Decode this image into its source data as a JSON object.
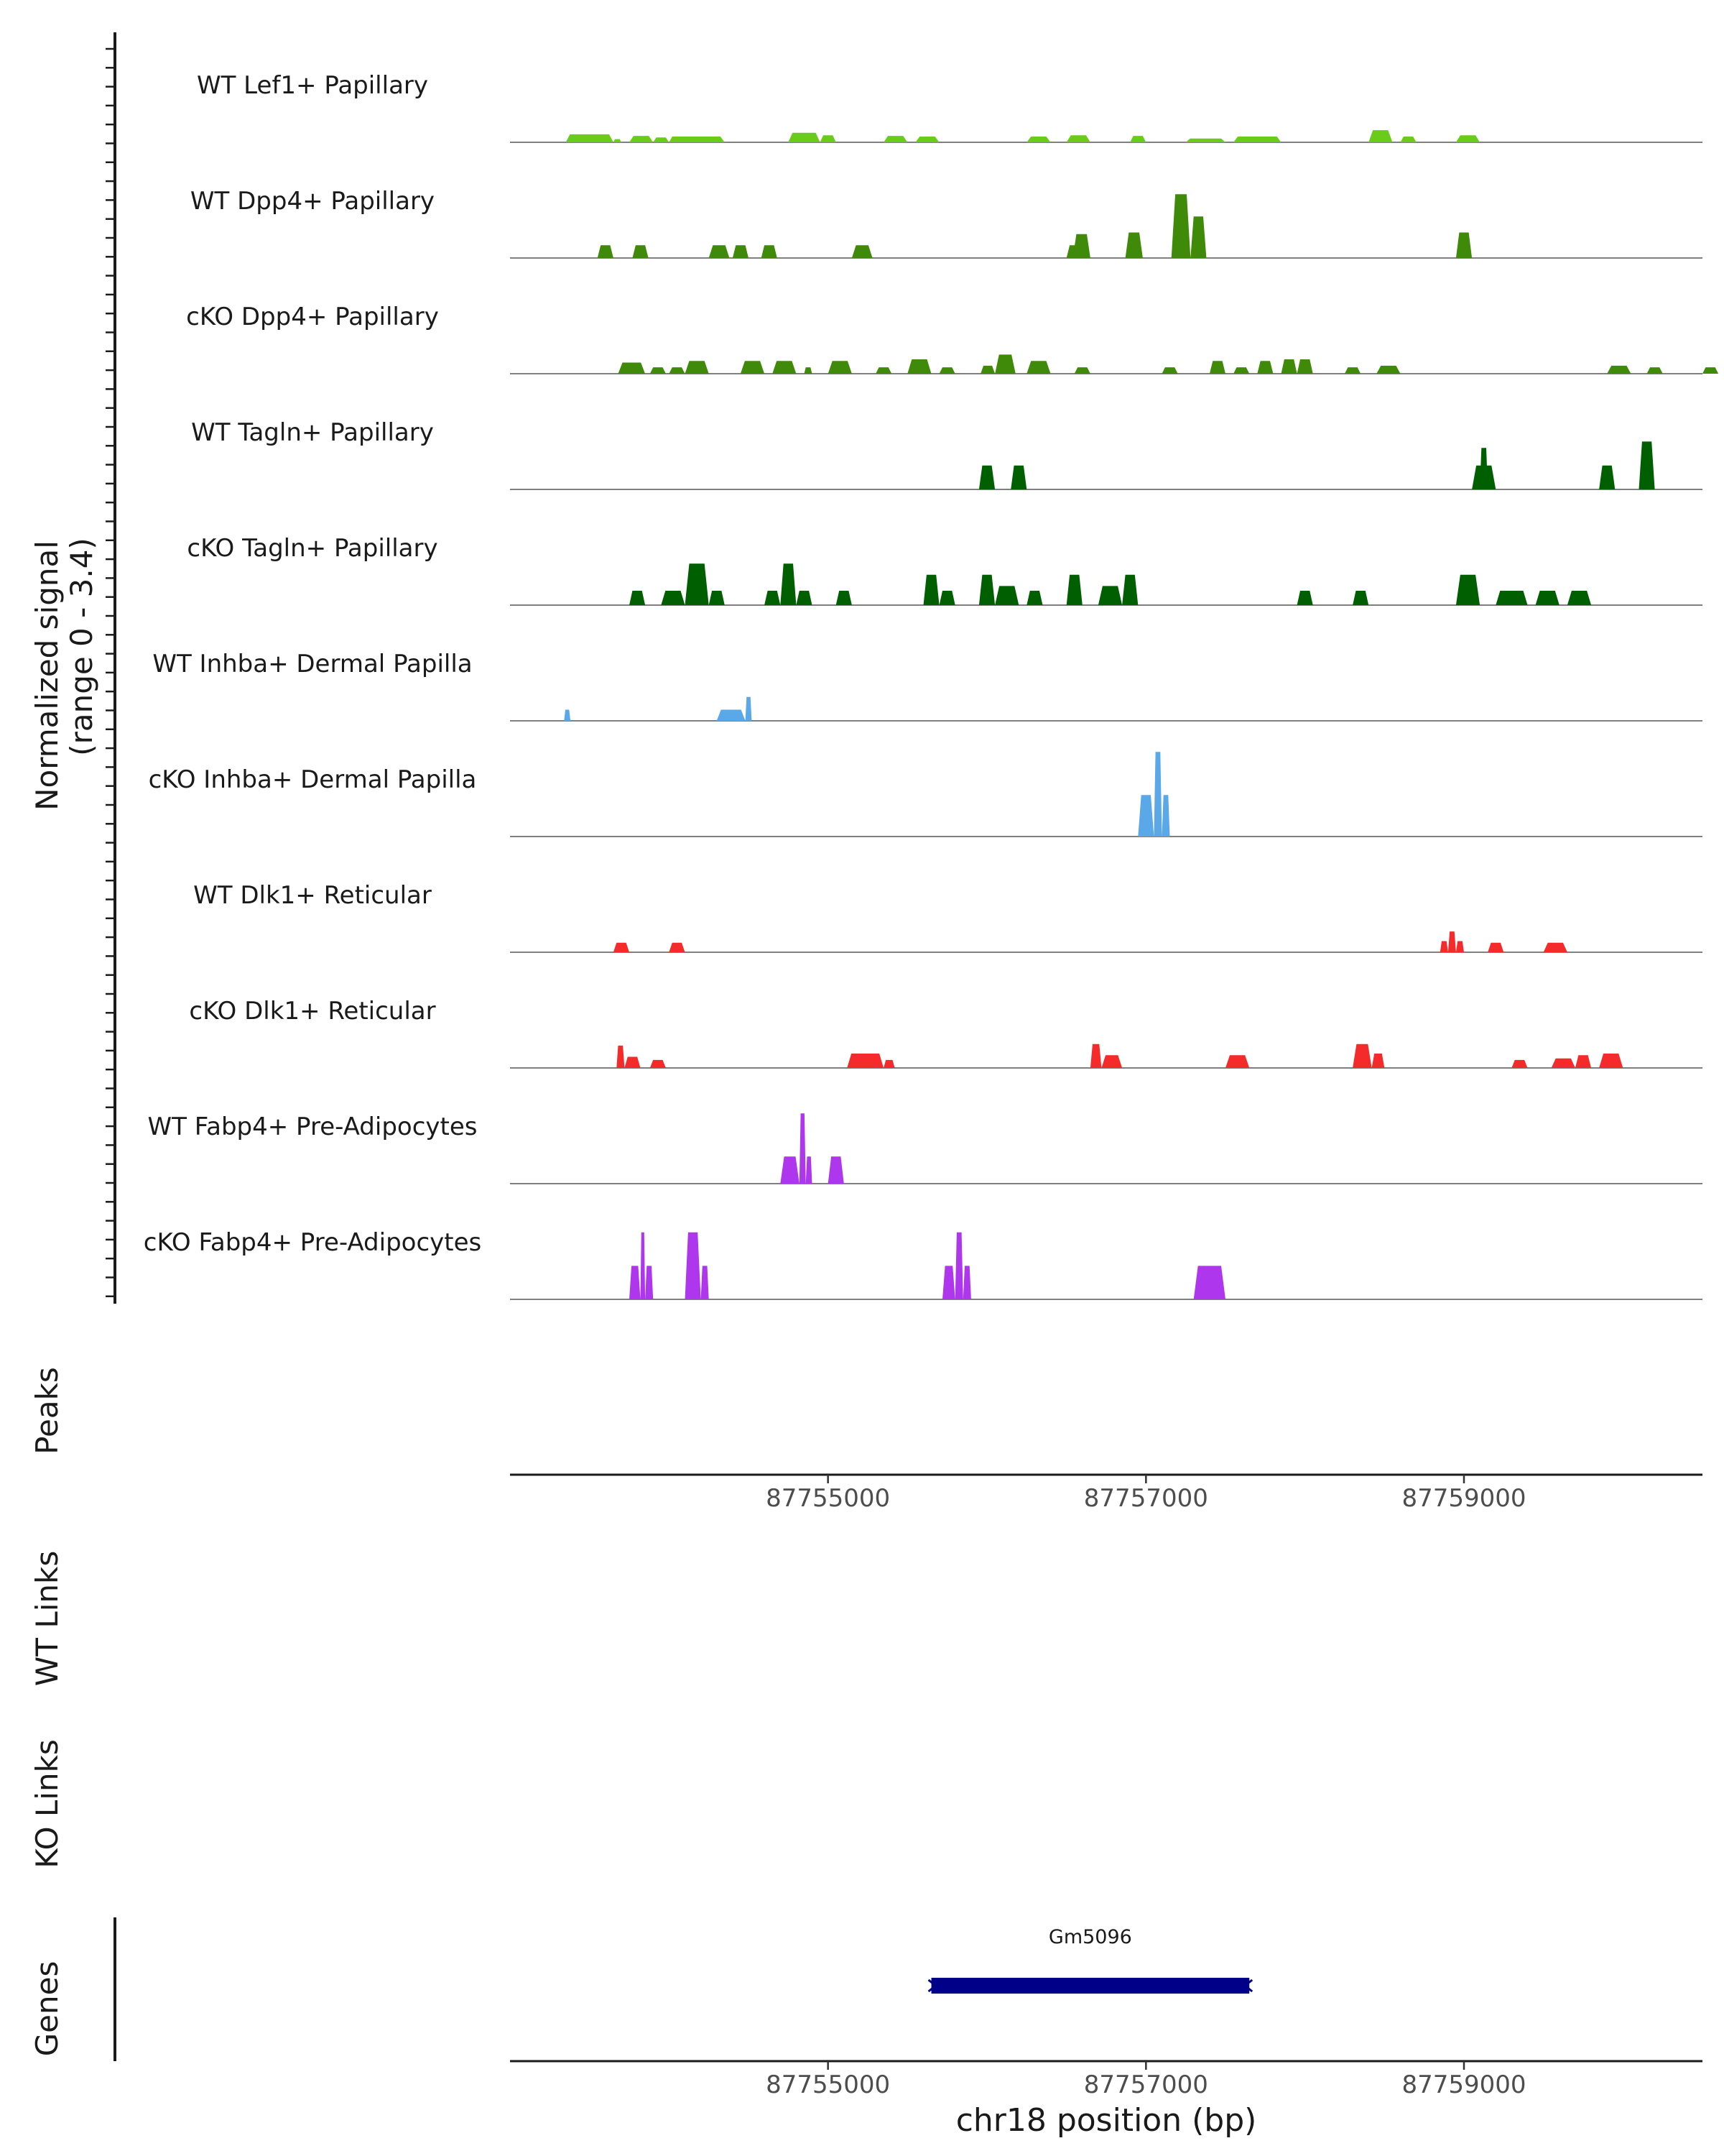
{
  "chart_data": {
    "type": "area",
    "chromosome": "chr18",
    "xrange": [
      87753000,
      87760500
    ],
    "signal_ylabel": "Normalized signal",
    "signal_range": "(range 0 - 3.4)",
    "ylim": [
      0,
      3.4
    ],
    "xlabel": "chr18 position (bp)",
    "xticks": [
      87755000,
      87757000,
      87759000
    ],
    "xtick_labels": [
      "87755000",
      "87757000",
      "87759000"
    ],
    "panel_labels": {
      "peaks": "Peaks",
      "wt_links": "WT Links",
      "ko_links": "KO Links",
      "genes": "Genes"
    },
    "colors": {
      "lef1": "#6BCB1B",
      "dpp4": "#3F8A08",
      "tagln": "#005F00",
      "inhba": "#5AA8E8",
      "dlk1": "#F52A2A",
      "fabp4": "#AE37EE",
      "gene": "#000088",
      "baseline": "#808080",
      "axis": "#1a1a1a"
    },
    "series": [
      {
        "name": "WT Lef1+ Papillary",
        "color_key": "lef1",
        "peaks": [
          [
            87753350,
            87753650,
            0.25
          ],
          [
            87753650,
            87753700,
            0.1
          ],
          [
            87753750,
            87753900,
            0.2
          ],
          [
            87753900,
            87754000,
            0.15
          ],
          [
            87754000,
            87754100,
            0.18
          ],
          [
            87754050,
            87754350,
            0.18
          ],
          [
            87754750,
            87754950,
            0.3
          ],
          [
            87754950,
            87755050,
            0.22
          ],
          [
            87755350,
            87755500,
            0.2
          ],
          [
            87755550,
            87755700,
            0.18
          ],
          [
            87756250,
            87756400,
            0.18
          ],
          [
            87756500,
            87756650,
            0.22
          ],
          [
            87756900,
            87757000,
            0.2
          ],
          [
            87757250,
            87757500,
            0.12
          ],
          [
            87757550,
            87757850,
            0.18
          ],
          [
            87758400,
            87758550,
            0.38
          ],
          [
            87758600,
            87758700,
            0.18
          ],
          [
            87758950,
            87759100,
            0.22
          ]
        ]
      },
      {
        "name": "WT Dpp4+ Papillary",
        "color_key": "dpp4",
        "peaks": [
          [
            87753550,
            87753650,
            0.4
          ],
          [
            87753770,
            87753870,
            0.4
          ],
          [
            87754250,
            87754380,
            0.4
          ],
          [
            87754400,
            87754500,
            0.4
          ],
          [
            87754580,
            87754680,
            0.4
          ],
          [
            87755150,
            87755280,
            0.4
          ],
          [
            87756500,
            87756600,
            0.4
          ],
          [
            87756540,
            87756650,
            0.75
          ],
          [
            87756870,
            87756980,
            0.8
          ],
          [
            87757160,
            87757280,
            2.0
          ],
          [
            87757280,
            87757380,
            1.3
          ],
          [
            87758950,
            87759050,
            0.8
          ]
        ]
      },
      {
        "name": "cKO Dpp4+ Papillary",
        "color_key": "dpp4",
        "peaks": [
          [
            87753680,
            87753850,
            0.35
          ],
          [
            87753880,
            87753980,
            0.2
          ],
          [
            87754000,
            87754100,
            0.2
          ],
          [
            87754100,
            87754250,
            0.4
          ],
          [
            87754450,
            87754600,
            0.4
          ],
          [
            87754650,
            87754800,
            0.4
          ],
          [
            87754850,
            87754900,
            0.2
          ],
          [
            87755000,
            87755150,
            0.4
          ],
          [
            87755300,
            87755400,
            0.2
          ],
          [
            87755500,
            87755650,
            0.45
          ],
          [
            87755700,
            87755800,
            0.2
          ],
          [
            87755960,
            87756050,
            0.25
          ],
          [
            87756050,
            87756180,
            0.6
          ],
          [
            87756250,
            87756400,
            0.4
          ],
          [
            87756550,
            87756650,
            0.2
          ],
          [
            87757100,
            87757200,
            0.2
          ],
          [
            87757400,
            87757500,
            0.4
          ],
          [
            87757550,
            87757650,
            0.2
          ],
          [
            87757700,
            87757800,
            0.4
          ],
          [
            87757850,
            87757950,
            0.45
          ],
          [
            87757950,
            87758050,
            0.45
          ],
          [
            87758250,
            87758350,
            0.2
          ],
          [
            87758450,
            87758600,
            0.25
          ],
          [
            87759900,
            87760050,
            0.25
          ],
          [
            87760150,
            87760250,
            0.2
          ],
          [
            87760500,
            87760600,
            0.2
          ]
        ]
      },
      {
        "name": "WT Tagln+ Papillary",
        "color_key": "tagln",
        "peaks": [
          [
            87755950,
            87756050,
            0.75
          ],
          [
            87756150,
            87756250,
            0.75
          ],
          [
            87759050,
            87759200,
            0.75
          ],
          [
            87759100,
            87759150,
            1.3
          ],
          [
            87759850,
            87759950,
            0.75
          ],
          [
            87760100,
            87760200,
            1.5
          ]
        ]
      },
      {
        "name": "cKO Tagln+ Papillary",
        "color_key": "tagln",
        "peaks": [
          [
            87753750,
            87753850,
            0.45
          ],
          [
            87753950,
            87754100,
            0.45
          ],
          [
            87754100,
            87754250,
            1.3
          ],
          [
            87754250,
            87754350,
            0.45
          ],
          [
            87754600,
            87754700,
            0.45
          ],
          [
            87754700,
            87754800,
            1.3
          ],
          [
            87754800,
            87754900,
            0.45
          ],
          [
            87755050,
            87755150,
            0.45
          ],
          [
            87755600,
            87755700,
            0.95
          ],
          [
            87755700,
            87755800,
            0.45
          ],
          [
            87755950,
            87756050,
            0.95
          ],
          [
            87756050,
            87756200,
            0.6
          ],
          [
            87756250,
            87756350,
            0.45
          ],
          [
            87756500,
            87756600,
            0.95
          ],
          [
            87756700,
            87756850,
            0.6
          ],
          [
            87756850,
            87756950,
            0.95
          ],
          [
            87757950,
            87758050,
            0.45
          ],
          [
            87758300,
            87758400,
            0.45
          ],
          [
            87758950,
            87759100,
            0.95
          ],
          [
            87759200,
            87759400,
            0.45
          ],
          [
            87759450,
            87759600,
            0.45
          ],
          [
            87759650,
            87759800,
            0.45
          ]
        ]
      },
      {
        "name": "WT Inhba+ Dermal Papilla",
        "color_key": "inhba",
        "peaks": [
          [
            87753340,
            87753380,
            0.35
          ],
          [
            87754300,
            87754480,
            0.35
          ],
          [
            87754480,
            87754520,
            0.75
          ]
        ]
      },
      {
        "name": "cKO Inhba+ Dermal Papilla",
        "color_key": "inhba",
        "peaks": [
          [
            87756950,
            87757050,
            1.3
          ],
          [
            87757050,
            87757100,
            2.65
          ],
          [
            87757100,
            87757150,
            1.3
          ]
        ]
      },
      {
        "name": "WT Dlk1+ Reticular",
        "color_key": "dlk1",
        "peaks": [
          [
            87753650,
            87753750,
            0.3
          ],
          [
            87754000,
            87754100,
            0.3
          ],
          [
            87758850,
            87758900,
            0.35
          ],
          [
            87758900,
            87758950,
            0.65
          ],
          [
            87758950,
            87759000,
            0.35
          ],
          [
            87759150,
            87759250,
            0.3
          ],
          [
            87759500,
            87759650,
            0.3
          ]
        ]
      },
      {
        "name": "cKO Dlk1+ Reticular",
        "color_key": "dlk1",
        "peaks": [
          [
            87753670,
            87753720,
            0.7
          ],
          [
            87753720,
            87753820,
            0.35
          ],
          [
            87753880,
            87753980,
            0.25
          ],
          [
            87755120,
            87755350,
            0.45
          ],
          [
            87755350,
            87755420,
            0.25
          ],
          [
            87756650,
            87756720,
            0.75
          ],
          [
            87756720,
            87756850,
            0.4
          ],
          [
            87757500,
            87757650,
            0.4
          ],
          [
            87758300,
            87758420,
            0.75
          ],
          [
            87758420,
            87758500,
            0.45
          ],
          [
            87759300,
            87759400,
            0.25
          ],
          [
            87759550,
            87759700,
            0.3
          ],
          [
            87759700,
            87759800,
            0.4
          ],
          [
            87759850,
            87760000,
            0.45
          ]
        ]
      },
      {
        "name": "WT Fabp4+ Pre-Adipocytes",
        "color_key": "fabp4",
        "peaks": [
          [
            87754700,
            87754820,
            0.85
          ],
          [
            87754820,
            87754860,
            2.2
          ],
          [
            87754860,
            87754900,
            0.85
          ],
          [
            87755000,
            87755100,
            0.85
          ]
        ]
      },
      {
        "name": "cKO Fabp4+ Pre-Adipocytes",
        "color_key": "fabp4",
        "peaks": [
          [
            87753750,
            87753820,
            1.05
          ],
          [
            87753820,
            87753850,
            2.1
          ],
          [
            87753850,
            87753900,
            1.05
          ],
          [
            87754100,
            87754200,
            2.1
          ],
          [
            87754200,
            87754250,
            1.05
          ],
          [
            87755720,
            87755800,
            1.05
          ],
          [
            87755800,
            87755850,
            2.1
          ],
          [
            87755850,
            87755900,
            1.05
          ],
          [
            87757300,
            87757500,
            1.05
          ]
        ]
      }
    ],
    "genes": [
      {
        "name": "Gm5096",
        "start": 87755650,
        "end": 87757650,
        "strand": "-"
      }
    ]
  }
}
